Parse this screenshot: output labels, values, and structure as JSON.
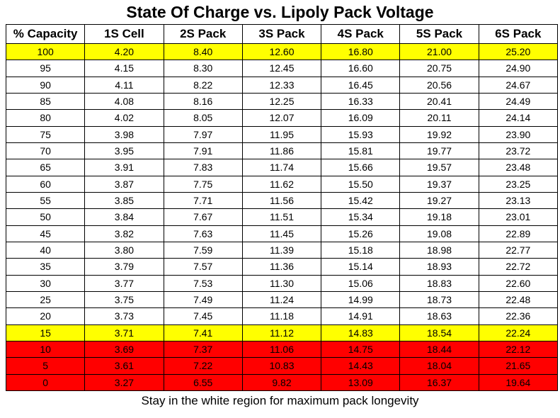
{
  "title": "State Of Charge vs. Lipoly Pack Voltage",
  "footer": "Stay in the white region for maximum pack longevity",
  "colors": {
    "white": "#ffffff",
    "yellow": "#ffff00",
    "red": "#ff0000"
  },
  "chart_data": {
    "type": "table",
    "title": "State Of Charge vs. Lipoly Pack Voltage",
    "columns": [
      "% Capacity",
      "1S Cell",
      "2S Pack",
      "3S Pack",
      "4S Pack",
      "5S Pack",
      "6S Pack"
    ],
    "rows": [
      {
        "band": "yellow",
        "cells": [
          "100",
          "4.20",
          "8.40",
          "12.60",
          "16.80",
          "21.00",
          "25.20"
        ]
      },
      {
        "band": "white",
        "cells": [
          "95",
          "4.15",
          "8.30",
          "12.45",
          "16.60",
          "20.75",
          "24.90"
        ]
      },
      {
        "band": "white",
        "cells": [
          "90",
          "4.11",
          "8.22",
          "12.33",
          "16.45",
          "20.56",
          "24.67"
        ]
      },
      {
        "band": "white",
        "cells": [
          "85",
          "4.08",
          "8.16",
          "12.25",
          "16.33",
          "20.41",
          "24.49"
        ]
      },
      {
        "band": "white",
        "cells": [
          "80",
          "4.02",
          "8.05",
          "12.07",
          "16.09",
          "20.11",
          "24.14"
        ]
      },
      {
        "band": "white",
        "cells": [
          "75",
          "3.98",
          "7.97",
          "11.95",
          "15.93",
          "19.92",
          "23.90"
        ]
      },
      {
        "band": "white",
        "cells": [
          "70",
          "3.95",
          "7.91",
          "11.86",
          "15.81",
          "19.77",
          "23.72"
        ]
      },
      {
        "band": "white",
        "cells": [
          "65",
          "3.91",
          "7.83",
          "11.74",
          "15.66",
          "19.57",
          "23.48"
        ]
      },
      {
        "band": "white",
        "cells": [
          "60",
          "3.87",
          "7.75",
          "11.62",
          "15.50",
          "19.37",
          "23.25"
        ]
      },
      {
        "band": "white",
        "cells": [
          "55",
          "3.85",
          "7.71",
          "11.56",
          "15.42",
          "19.27",
          "23.13"
        ]
      },
      {
        "band": "white",
        "cells": [
          "50",
          "3.84",
          "7.67",
          "11.51",
          "15.34",
          "19.18",
          "23.01"
        ]
      },
      {
        "band": "white",
        "cells": [
          "45",
          "3.82",
          "7.63",
          "11.45",
          "15.26",
          "19.08",
          "22.89"
        ]
      },
      {
        "band": "white",
        "cells": [
          "40",
          "3.80",
          "7.59",
          "11.39",
          "15.18",
          "18.98",
          "22.77"
        ]
      },
      {
        "band": "white",
        "cells": [
          "35",
          "3.79",
          "7.57",
          "11.36",
          "15.14",
          "18.93",
          "22.72"
        ]
      },
      {
        "band": "white",
        "cells": [
          "30",
          "3.77",
          "7.53",
          "11.30",
          "15.06",
          "18.83",
          "22.60"
        ]
      },
      {
        "band": "white",
        "cells": [
          "25",
          "3.75",
          "7.49",
          "11.24",
          "14.99",
          "18.73",
          "22.48"
        ]
      },
      {
        "band": "white",
        "cells": [
          "20",
          "3.73",
          "7.45",
          "11.18",
          "14.91",
          "18.63",
          "22.36"
        ]
      },
      {
        "band": "yellow",
        "cells": [
          "15",
          "3.71",
          "7.41",
          "11.12",
          "14.83",
          "18.54",
          "22.24"
        ]
      },
      {
        "band": "red",
        "cells": [
          "10",
          "3.69",
          "7.37",
          "11.06",
          "14.75",
          "18.44",
          "22.12"
        ]
      },
      {
        "band": "red",
        "cells": [
          "5",
          "3.61",
          "7.22",
          "10.83",
          "14.43",
          "18.04",
          "21.65"
        ]
      },
      {
        "band": "red",
        "cells": [
          "0",
          "3.27",
          "6.55",
          "9.82",
          "13.09",
          "16.37",
          "19.64"
        ]
      }
    ]
  }
}
